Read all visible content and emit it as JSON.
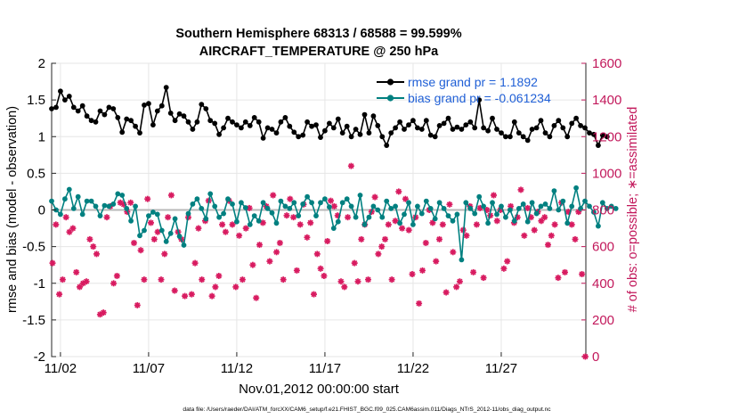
{
  "chart_data": {
    "type": "line",
    "title_line1": "Southern Hemisphere 68313 / 68588 = 99.599%",
    "title_line2": "AIRCRAFT_TEMPERATURE @ 250 hPa",
    "xlabel": "Nov.01,2012 00:00:00 start",
    "ylabel_left": "rmse and bias (model - observation)",
    "ylabel_right": "# of obs: o=possible; ∗=assimilated",
    "footnote": "data file: /Users/raeder/DAI/ATM_forcXX/CAM6_setup/f.e21.FHIST_BGC.f09_025.CAM6assim.011/Diags_NTrS_2012-11/obs_diag_output.nc",
    "xlim_days": [
      0.5,
      30.8
    ],
    "ylim_left": [
      -2,
      2
    ],
    "ylim_right": [
      0,
      1600
    ],
    "x_ticks": [
      {
        "day": 1,
        "label": "11/02"
      },
      {
        "day": 6,
        "label": "11/07"
      },
      {
        "day": 11,
        "label": "11/12"
      },
      {
        "day": 16,
        "label": "11/17"
      },
      {
        "day": 21,
        "label": "11/22"
      },
      {
        "day": 26,
        "label": "11/27"
      }
    ],
    "y_left_ticks": [
      "-2",
      "-1.5",
      "-1",
      "-0.5",
      "0",
      "0.5",
      "1",
      "1.5",
      "2"
    ],
    "y_left_tick_values": [
      -2,
      -1.5,
      -1,
      -0.5,
      0,
      0.5,
      1,
      1.5,
      2
    ],
    "y_right_ticks": [
      "0",
      "200",
      "400",
      "600",
      "800",
      "1000",
      "1200",
      "1400",
      "1600"
    ],
    "y_right_tick_values": [
      0,
      200,
      400,
      600,
      800,
      1000,
      1200,
      1400,
      1600
    ],
    "x_start_day": 0.5,
    "x_step_day": 0.25,
    "series": [
      {
        "name": "rmse grand pr = 1.1892",
        "axis": "left",
        "values": [
          1.38,
          1.4,
          1.62,
          1.5,
          1.55,
          1.4,
          1.35,
          1.42,
          1.28,
          1.22,
          1.2,
          1.35,
          1.3,
          1.4,
          1.38,
          1.26,
          1.06,
          1.24,
          1.22,
          1.14,
          1.05,
          1.43,
          1.45,
          1.16,
          1.35,
          1.42,
          1.67,
          1.32,
          1.22,
          1.31,
          1.28,
          1.2,
          1.1,
          1.2,
          1.44,
          1.38,
          1.22,
          1.18,
          1.03,
          1.12,
          1.25,
          1.2,
          1.16,
          1.12,
          1.2,
          1.15,
          1.26,
          1.2,
          0.98,
          1.12,
          1.1,
          1.05,
          1.2,
          1.26,
          1.14,
          1.06,
          1.0,
          1.02,
          1.2,
          1.14,
          1.16,
          0.99,
          1.08,
          1.18,
          1.12,
          1.24,
          1.05,
          1.14,
          1.0,
          1.1,
          1.03,
          1.3,
          1.05,
          1.28,
          1.15,
          1.0,
          0.88,
          1.05,
          1.12,
          1.2,
          1.1,
          1.16,
          1.22,
          1.12,
          1.1,
          1.22,
          1.02,
          1.0,
          1.15,
          1.18,
          1.25,
          1.1,
          1.13,
          1.1,
          1.16,
          1.2,
          1.12,
          1.5,
          1.12,
          1.08,
          1.25,
          1.1,
          1.05,
          1.0,
          1.0,
          1.2,
          1.05,
          1.0,
          0.95,
          1.1,
          1.12,
          1.22,
          1.05,
          1.0,
          1.15,
          1.22,
          1.12,
          1.0,
          1.18,
          1.25,
          1.15,
          1.12,
          1.05,
          1.03,
          0.88,
          1.02,
          1.0
        ]
      },
      {
        "name": "bias grand pr = -0.061234",
        "axis": "left",
        "values": [
          0.12,
          0.0,
          -0.06,
          0.15,
          0.28,
          0.02,
          0.18,
          -0.06,
          0.12,
          0.12,
          0.05,
          -0.08,
          0.06,
          0.05,
          0.08,
          0.22,
          0.2,
          0.02,
          -0.15,
          0.05,
          -0.35,
          -0.28,
          -0.08,
          -0.03,
          -0.06,
          -0.28,
          -0.43,
          -0.32,
          -0.12,
          -0.36,
          -0.48,
          -0.05,
          0.08,
          0.15,
          0.02,
          -0.12,
          0.22,
          0.05,
          -0.1,
          -0.05,
          0.15,
          0.08,
          -0.16,
          0.1,
          0.03,
          -0.2,
          -0.08,
          -0.15,
          0.1,
          0.02,
          -0.04,
          -0.18,
          0.12,
          0.05,
          0.02,
          0.1,
          -0.08,
          0.08,
          0.18,
          0.1,
          -0.08,
          0.1,
          0.15,
          0.04,
          -0.25,
          -0.16,
          0.1,
          0.15,
          0.05,
          -0.1,
          0.2,
          -0.2,
          -0.1,
          0.05,
          0.0,
          -0.1,
          0.12,
          0.02,
          0.05,
          -0.18,
          -0.06,
          0.1,
          -0.2,
          0.05,
          -0.05,
          0.12,
          0.02,
          -0.12,
          0.1,
          0.02,
          -0.08,
          -0.15,
          -0.06,
          -0.68,
          0.1,
          0.02,
          -0.05,
          0.18,
          0.05,
          -0.18,
          0.1,
          -0.06,
          0.05,
          -0.1,
          0.0,
          -0.15,
          0.02,
          0.08,
          -0.16,
          0.1,
          -0.05,
          0.05,
          0.08,
          0.02,
          0.26,
          0.0,
          0.12,
          -0.18,
          0.05,
          0.3,
          0.02,
          0.12,
          0.05,
          -0.03,
          -0.22,
          0.1,
          0.02,
          0.05,
          0.02
        ]
      },
      {
        "name": "# of obs assimilated",
        "axis": "right",
        "values": [
          510,
          720,
          340,
          420,
          760,
          680,
          700,
          460,
          380,
          400,
          410,
          640,
          600,
          560,
          230,
          240,
          760,
          820,
          400,
          440,
          840,
          830,
          790,
          840,
          620,
          280,
          580,
          420,
          860,
          730,
          640,
          680,
          420,
          560,
          760,
          880,
          360,
          680,
          640,
          330,
          760,
          340,
          510,
          700,
          420,
          740,
          850,
          330,
          380,
          440,
          720,
          680,
          850,
          720,
          380,
          660,
          420,
          700,
          810,
          500,
          320,
          610,
          730,
          820,
          520,
          880,
          570,
          620,
          420,
          770,
          860,
          760,
          470,
          720,
          830,
          650,
          730,
          340,
          560,
          480,
          440,
          630,
          850,
          820,
          770,
          410,
          380,
          760,
          1040,
          510,
          410,
          640,
          720,
          420,
          790,
          870,
          560,
          600,
          640,
          720,
          420,
          740,
          900,
          700,
          860,
          690,
          450,
          760,
          290,
          470,
          620,
          800,
          730,
          520,
          640,
          720,
          350,
          830,
          570,
          380,
          410,
          690,
          660,
          820,
          460,
          720,
          810,
          430,
          800,
          770,
          880,
          740,
          800,
          480,
          520,
          820,
          730,
          760,
          910,
          660,
          810,
          760,
          690,
          790,
          740,
          760,
          610,
          660,
          720,
          430,
          840,
          460,
          790,
          720,
          640,
          790,
          450,
          0
        ]
      }
    ],
    "colors": {
      "rmse": "#000000",
      "bias": "#008080",
      "obs": "#d81b60",
      "legend_text": "#1f5fd6",
      "right_axis": "#c2185b"
    },
    "legend_position": "top-right"
  }
}
